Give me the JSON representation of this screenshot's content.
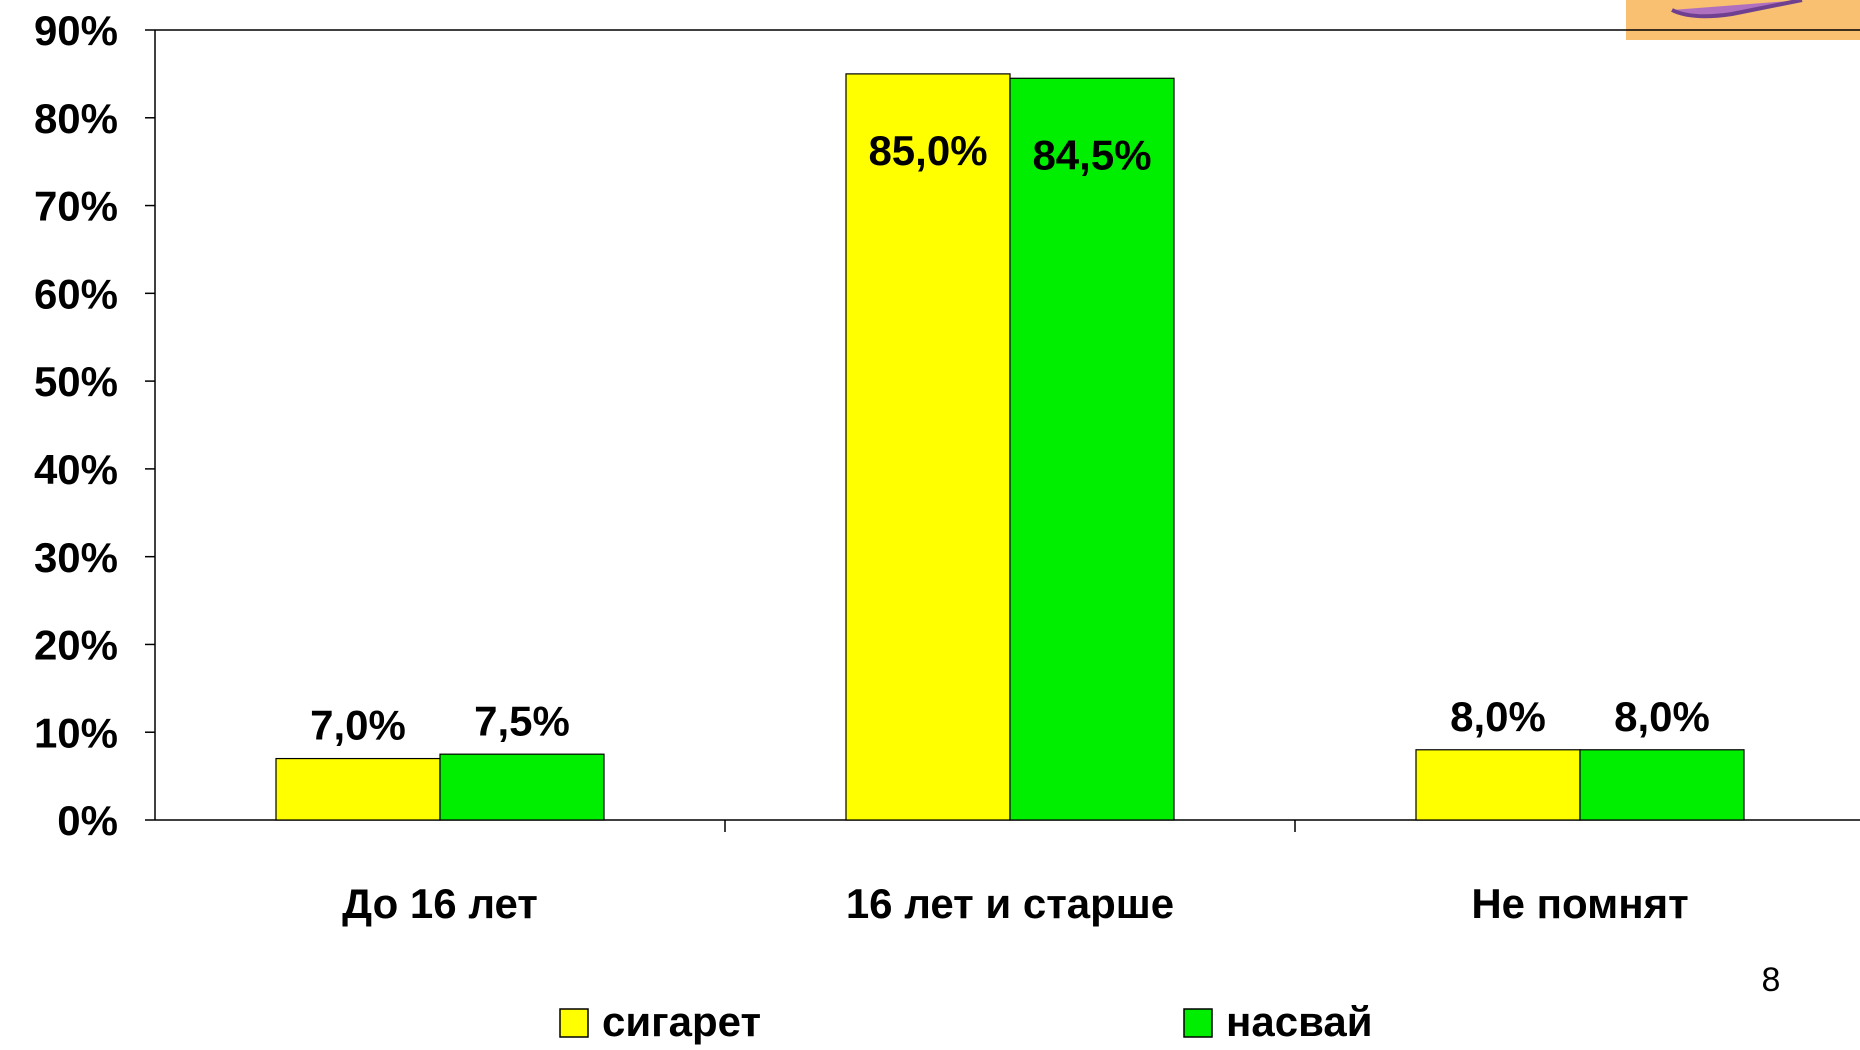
{
  "chart_data": {
    "type": "bar",
    "categories": [
      "До 16 лет",
      "16 лет и старше",
      "Не помнят"
    ],
    "series": [
      {
        "name": "сигарет",
        "color": "#ffff00",
        "values": [
          7.0,
          85.0,
          8.0
        ],
        "value_labels": [
          "7,0%",
          "85,0%",
          "8,0%"
        ]
      },
      {
        "name": "насвай",
        "color": "#00ee00",
        "values": [
          7.5,
          84.5,
          8.0
        ],
        "value_labels": [
          "7,5%",
          "84,5%",
          "8,0%"
        ]
      }
    ],
    "ylim": [
      0,
      90
    ],
    "yticks": [
      {
        "value": 0,
        "label": "0%"
      },
      {
        "value": 10,
        "label": "10%"
      },
      {
        "value": 20,
        "label": "20%"
      },
      {
        "value": 30,
        "label": "30%"
      },
      {
        "value": 40,
        "label": "40%"
      },
      {
        "value": 50,
        "label": "50%"
      },
      {
        "value": 60,
        "label": "60%"
      },
      {
        "value": 70,
        "label": "70%"
      },
      {
        "value": 80,
        "label": "80%"
      },
      {
        "value": 90,
        "label": "90%"
      }
    ],
    "grid": false,
    "legend": "bottom"
  },
  "page_number": "8"
}
